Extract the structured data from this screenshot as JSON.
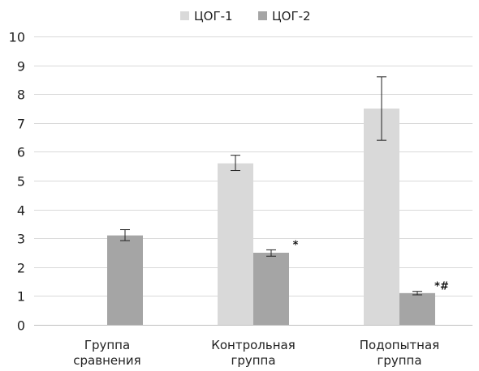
{
  "chart_data": {
    "type": "bar",
    "categories": [
      [
        "Группа",
        "сравнения"
      ],
      [
        "Контрольная",
        "группа"
      ],
      [
        "Подопытная",
        "группа"
      ]
    ],
    "series": [
      {
        "name": "ЦОГ-1",
        "color": "#d9d9d9",
        "values": [
          null,
          5.6,
          7.5
        ],
        "error_low": [
          null,
          5.35,
          6.4
        ],
        "error_high": [
          null,
          5.88,
          8.6
        ],
        "annotations": [
          null,
          null,
          null
        ]
      },
      {
        "name": "ЦОГ-2",
        "color": "#a5a5a5",
        "values": [
          3.1,
          2.5,
          1.1
        ],
        "error_low": [
          2.92,
          2.38,
          1.04
        ],
        "error_high": [
          3.3,
          2.6,
          1.16
        ],
        "annotations": [
          null,
          "*",
          "*#"
        ]
      }
    ],
    "ylim": [
      0,
      10
    ],
    "yticks": [
      "0",
      "1",
      "2",
      "3",
      "4",
      "5",
      "6",
      "7",
      "8",
      "9",
      "10"
    ],
    "grid": true,
    "legend_position": "top"
  }
}
